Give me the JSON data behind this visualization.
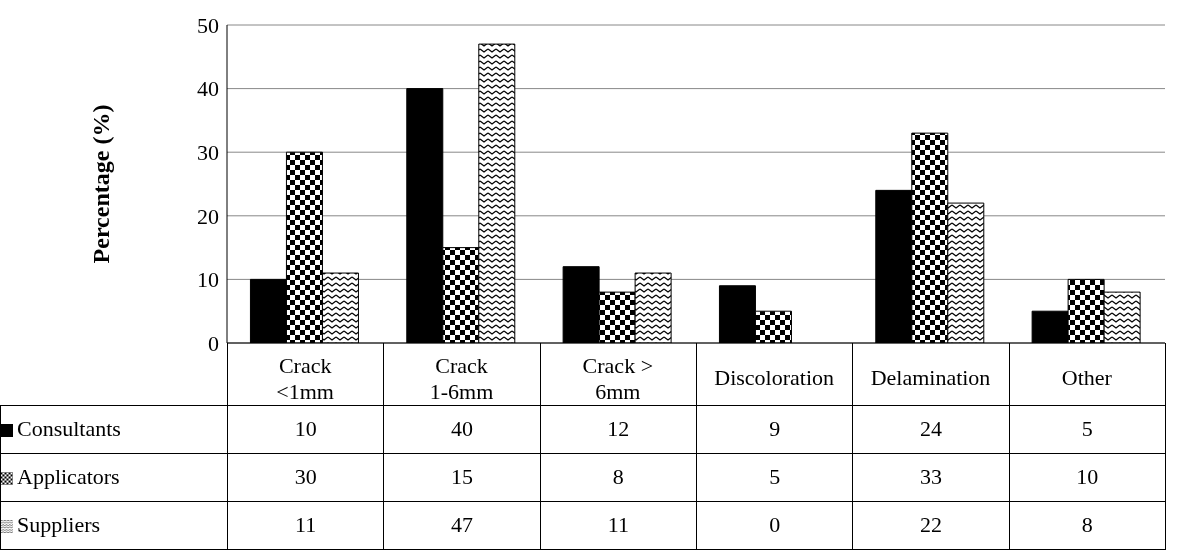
{
  "chart_data": {
    "type": "bar",
    "ylabel": "Percentage (%)",
    "categories": [
      "Crack <1mm",
      "Crack 1-6mm",
      "Crack > 6mm",
      "Discoloration",
      "Delamination",
      "Other"
    ],
    "series": [
      {
        "name": "Consultants",
        "color": "#000000",
        "values": [
          10,
          40,
          12,
          9,
          24,
          5
        ]
      },
      {
        "name": "Applicators",
        "color": "#000000",
        "values": [
          30,
          15,
          8,
          5,
          33,
          10
        ]
      },
      {
        "name": "Suppliers",
        "color": "#000000",
        "values": [
          11,
          47,
          11,
          0,
          22,
          8
        ]
      }
    ],
    "ylim": [
      0,
      50
    ],
    "yticks": [
      0,
      10,
      20,
      30,
      40,
      50
    ],
    "grid": "y",
    "legend": "bottom",
    "data_labels": true
  }
}
